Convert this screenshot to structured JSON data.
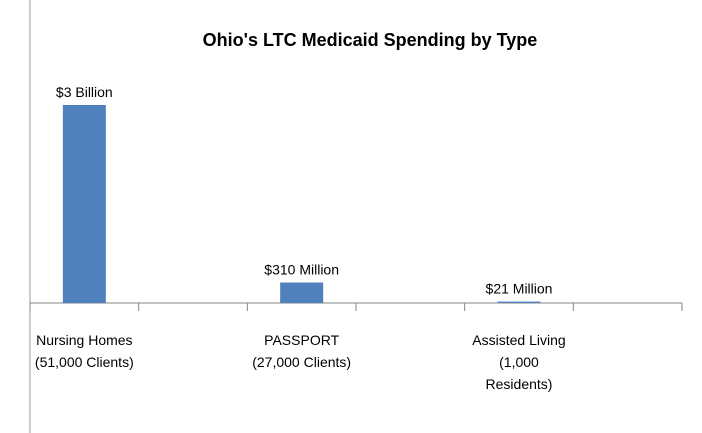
{
  "chart_data": {
    "type": "bar",
    "title": "Ohio's LTC Medicaid Spending by Type",
    "categories": [
      "Nursing Homes (51,000 Clients)",
      null,
      "PASSPORT (27,000 Clients)",
      null,
      "Assisted Living (1,000 Residents)",
      null
    ],
    "values": [
      3000000000,
      null,
      310000000,
      null,
      21000000,
      null
    ],
    "value_labels": [
      "$3 Billion",
      null,
      "$310 Million",
      null,
      "$21 Million",
      null
    ],
    "color": "#4f81bd"
  }
}
